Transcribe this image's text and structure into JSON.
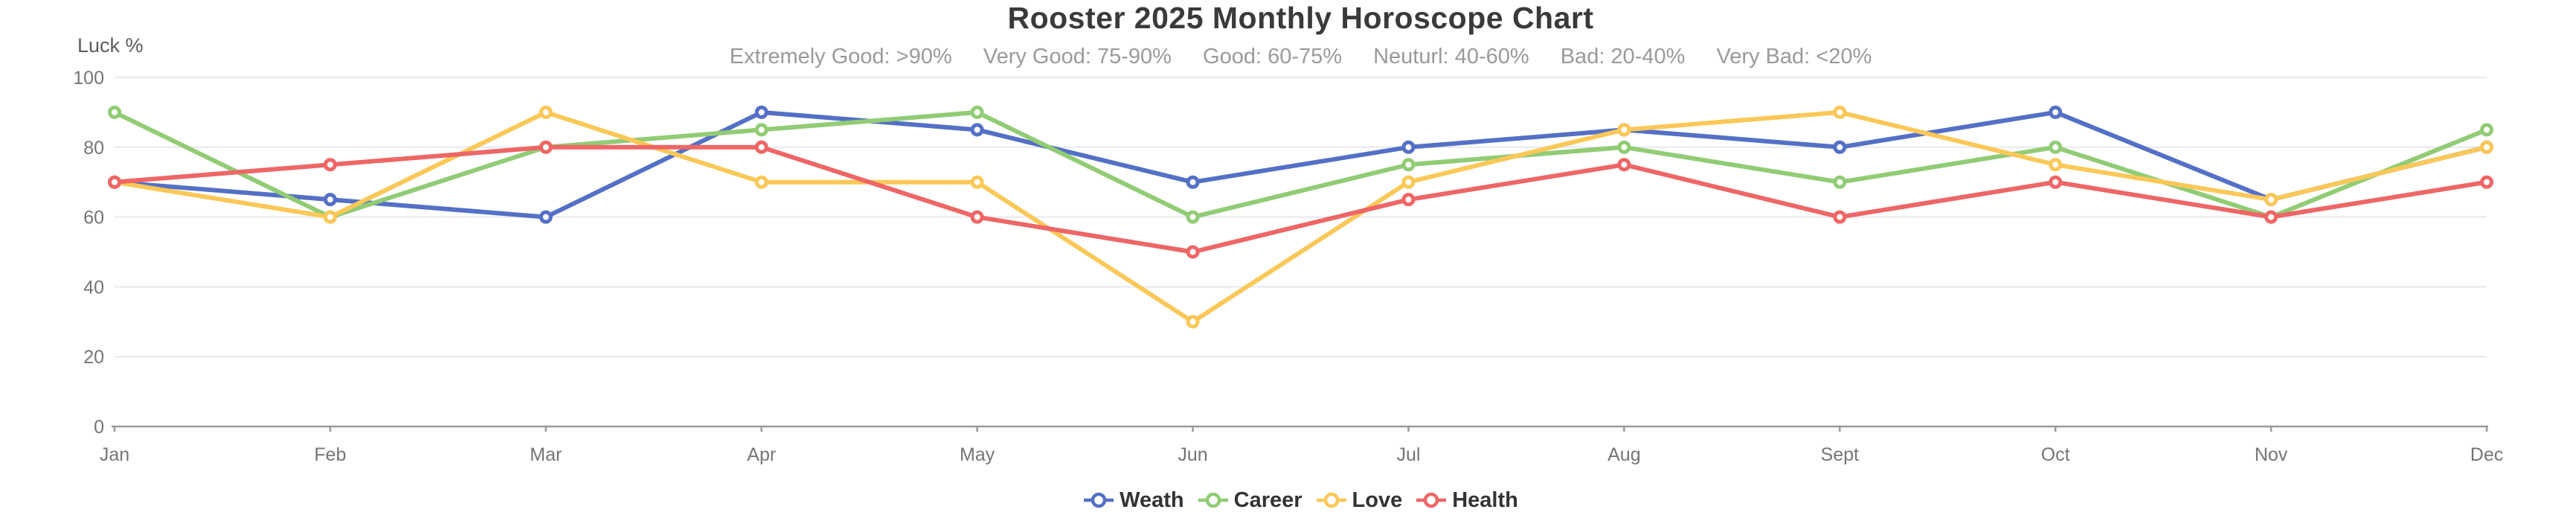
{
  "title": "Rooster 2025 Monthly Horoscope Chart",
  "subtitle_segments": [
    "Extremely Good: >90%",
    "Very Good: 75-90%",
    "Good: 60-75%",
    "Neuturl: 40-60%",
    "Bad: 20-40%",
    "Very Bad: <20%"
  ],
  "y_axis_name": "Luck %",
  "chart_data": {
    "type": "line",
    "title": "Rooster 2025 Monthly Horoscope Chart",
    "subtitle": "Extremely Good: >90%    Very Good: 75-90%    Good: 60-75%    Neuturl: 40-60%    Bad: 20-40%    Very Bad: <20%",
    "categories": [
      "Jan",
      "Feb",
      "Mar",
      "Apr",
      "May",
      "Jun",
      "Jul",
      "Aug",
      "Sept",
      "Oct",
      "Nov",
      "Dec"
    ],
    "series": [
      {
        "name": "Weath",
        "color": "#5470c6",
        "values": [
          70,
          65,
          60,
          90,
          85,
          70,
          80,
          85,
          80,
          90,
          65,
          80
        ]
      },
      {
        "name": "Career",
        "color": "#91cc75",
        "values": [
          90,
          60,
          80,
          85,
          90,
          60,
          75,
          80,
          70,
          80,
          60,
          85
        ]
      },
      {
        "name": "Love",
        "color": "#fac858",
        "values": [
          70,
          60,
          90,
          70,
          70,
          30,
          70,
          85,
          90,
          75,
          65,
          80
        ]
      },
      {
        "name": "Health",
        "color": "#ee6666",
        "values": [
          70,
          75,
          80,
          80,
          60,
          50,
          65,
          75,
          60,
          70,
          60,
          70
        ]
      }
    ],
    "xlabel": "",
    "ylabel": "Luck %",
    "ylim": [
      0,
      100
    ],
    "y_ticks": [
      0,
      20,
      40,
      60,
      80,
      100
    ],
    "grid": true,
    "legend_position": "bottom",
    "marker": "open-circle"
  },
  "colors": {
    "grid_line": "#e8e8ef",
    "axis_line": "#999999",
    "axis_label": "#757575",
    "title_text": "#3a3a3a",
    "subtitle_text": "#9a9a9a",
    "legend_text": "#333333",
    "background": "#ffffff"
  }
}
